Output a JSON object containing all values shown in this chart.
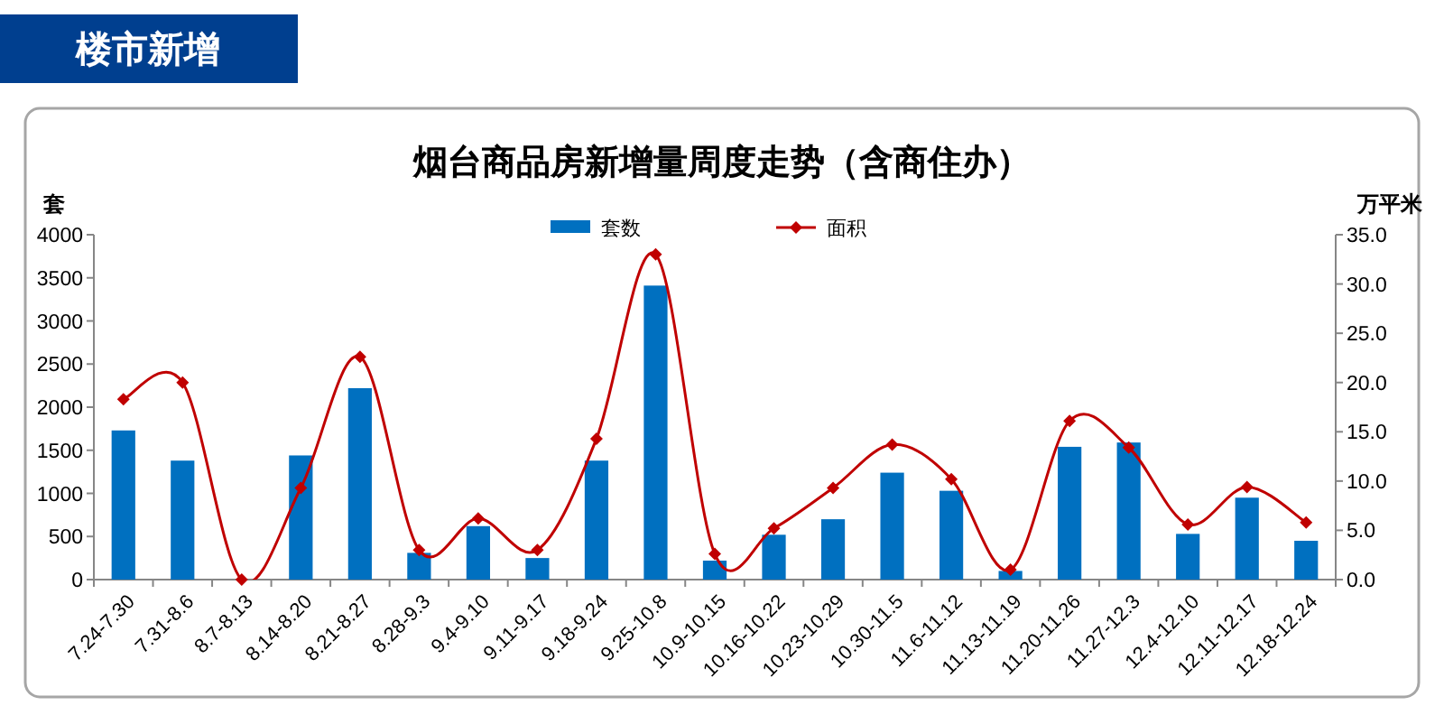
{
  "chart_data": {
    "type": "bar",
    "title": "烟台商品房新增量周度走势（含商住办）",
    "ylabel": "套",
    "y2label": "万平米",
    "annotations": [
      "楼市新增"
    ],
    "categories": [
      "7.24-7.30",
      "7.31-8.6",
      "8.7-8.13",
      "8.14-8.20",
      "8.21-8.27",
      "8.28-9.3",
      "9.4-9.10",
      "9.11-9.17",
      "9.18-9.24",
      "9.25-10.8",
      "10.9-10.15",
      "10.16-10.22",
      "10.23-10.29",
      "10.30-11.5",
      "11.6-11.12",
      "11.13-11.19",
      "11.20-11.26",
      "11.27-12.3",
      "12.4-12.10",
      "12.11-12.17",
      "12.18-12.24"
    ],
    "series": [
      {
        "name": "套数",
        "color": "#0070c0",
        "values": [
          1730,
          1380,
          0,
          1440,
          2220,
          310,
          620,
          250,
          1380,
          3410,
          220,
          520,
          700,
          1240,
          1030,
          100,
          1540,
          1590,
          530,
          950,
          450
        ]
      },
      {
        "name": "面积",
        "type": "line",
        "axis": "y2",
        "color": "#c00000",
        "marker": "diamond",
        "values": [
          18.3,
          20.0,
          0,
          9.3,
          22.6,
          3.0,
          6.2,
          3.0,
          14.3,
          33.0,
          2.6,
          5.2,
          9.3,
          13.7,
          10.2,
          1.0,
          16.1,
          13.4,
          5.6,
          9.4,
          5.8
        ]
      }
    ],
    "ylim": [
      0,
      4000
    ],
    "yticks": [
      0,
      500,
      1000,
      1500,
      2000,
      2500,
      3000,
      3500,
      4000
    ],
    "y2lim": [
      0,
      35
    ],
    "y2ticks": [
      {
        "value": 0,
        "label": "0.0"
      },
      {
        "value": 5,
        "label": "5.0"
      },
      {
        "value": 10,
        "label": "10.0"
      },
      {
        "value": 15,
        "label": "15.0"
      },
      {
        "value": 20,
        "label": "20.0"
      },
      {
        "value": 25,
        "label": "25.0"
      },
      {
        "value": 30,
        "label": "30.0"
      },
      {
        "value": 35,
        "label": "35.0"
      }
    ],
    "legend": "top",
    "grid": false
  }
}
